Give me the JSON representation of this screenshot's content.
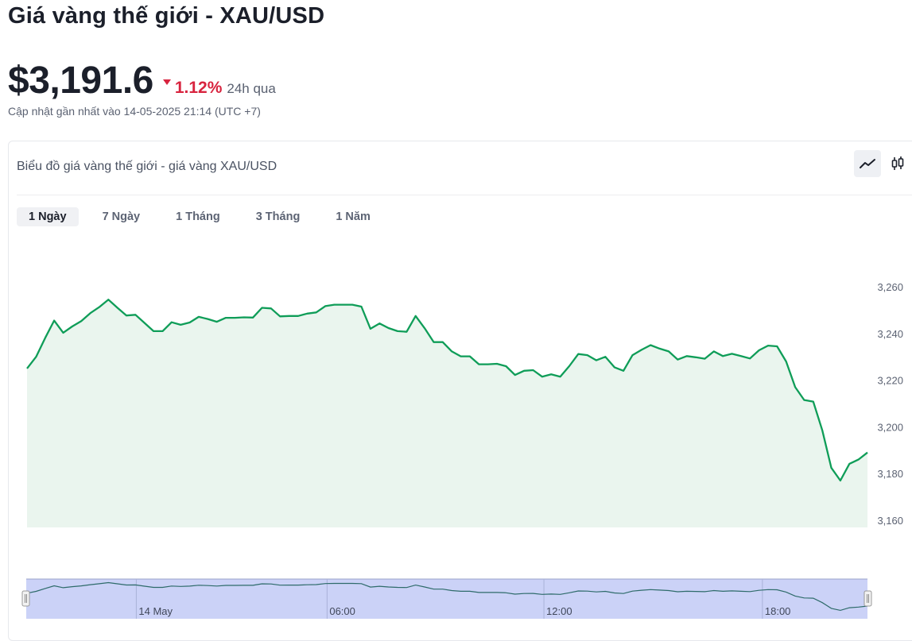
{
  "header": {
    "title": "Giá vàng thế giới - XAU/USD",
    "price": "$3,191.6",
    "change_pct": "1.12%",
    "change_period": "24h qua",
    "updated": "Cập nhật gần nhất vào 14-05-2025 21:14 (UTC +7)"
  },
  "card": {
    "title": "Biểu đồ giá vàng thế giới - giá vàng XAU/USD",
    "chart_types": [
      {
        "icon": "line-chart-icon",
        "active": true
      },
      {
        "icon": "candlestick-chart-icon",
        "active": false
      }
    ],
    "tabs": [
      {
        "label": "1 Ngày",
        "active": true
      },
      {
        "label": "7 Ngày",
        "active": false
      },
      {
        "label": "1 Tháng",
        "active": false
      },
      {
        "label": "3 Tháng",
        "active": false
      },
      {
        "label": "1 Năm",
        "active": false
      }
    ]
  },
  "colors": {
    "line": "#0f9d58",
    "area": "#eaf5ee",
    "navigator_fill": "#cbd2f7",
    "negative": "#d8243f"
  },
  "chart_data": {
    "type": "area",
    "title": "",
    "ylim": [
      3160,
      3260
    ],
    "yticks": [
      3260,
      3240,
      3220,
      3200,
      3180,
      3160
    ],
    "ytick_labels": [
      "3,260",
      "3,240",
      "3,220",
      "3,200",
      "3,180",
      "3,160"
    ],
    "y_axis_position": "right",
    "grid": false,
    "legend": "none",
    "navigator_labels": [
      "14 May",
      "06:00",
      "12:00",
      "18:00"
    ],
    "values": [
      3225.0,
      3230.0,
      3238.0,
      3245.5,
      3240.3,
      3243.0,
      3245.3,
      3248.7,
      3251.3,
      3254.5,
      3251.0,
      3247.7,
      3248.0,
      3244.5,
      3241.0,
      3241.0,
      3244.8,
      3243.7,
      3244.7,
      3247.1,
      3246.2,
      3245.0,
      3246.7,
      3246.7,
      3246.9,
      3246.8,
      3251.0,
      3250.7,
      3247.3,
      3247.5,
      3247.5,
      3248.5,
      3249.0,
      3251.7,
      3252.3,
      3252.3,
      3252.3,
      3251.5,
      3242.0,
      3244.3,
      3242.3,
      3241.0,
      3240.7,
      3247.5,
      3242.2,
      3236.3,
      3236.3,
      3232.3,
      3230.2,
      3230.2,
      3226.8,
      3226.8,
      3227.0,
      3226.0,
      3222.2,
      3224.0,
      3224.3,
      3221.5,
      3222.5,
      3221.5,
      3226.0,
      3231.2,
      3230.7,
      3228.5,
      3230.0,
      3225.5,
      3224.0,
      3230.7,
      3233.0,
      3235.0,
      3233.5,
      3232.3,
      3228.8,
      3230.3,
      3229.8,
      3229.2,
      3232.3,
      3230.3,
      3231.3,
      3230.3,
      3229.3,
      3232.8,
      3234.8,
      3234.5,
      3228.0,
      3217.0,
      3211.5,
      3210.8,
      3198.5,
      3182.5,
      3177.0,
      3184.2,
      3186.0,
      3189.0
    ]
  }
}
